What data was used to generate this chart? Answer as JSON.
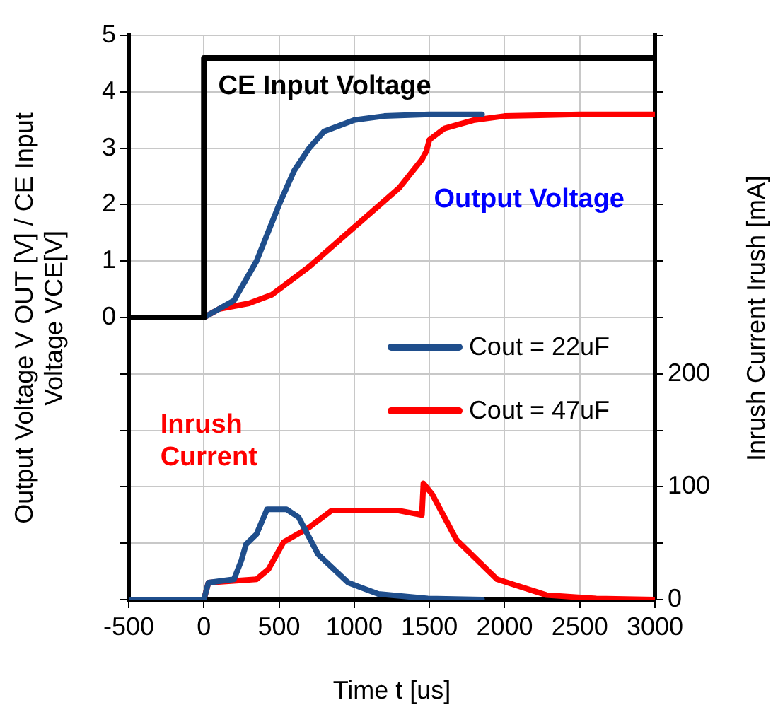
{
  "chart_data": {
    "type": "line",
    "xlabel": "Time t  [us]",
    "ylabel": "Output Voltage V OUT  [V] / CE Input Voltage VCE[V]",
    "y2label": "Inrush Current Irush [mA]",
    "xlim": [
      -500,
      3000
    ],
    "xticks": [
      -500,
      0,
      500,
      1000,
      1500,
      2000,
      2500,
      3000
    ],
    "ylim": [
      -5,
      5
    ],
    "yticks": [
      {
        "value": -5,
        "label": null
      },
      {
        "value": -4,
        "label": null
      },
      {
        "value": -3,
        "label": null
      },
      {
        "value": -2,
        "label": null
      },
      {
        "value": -1,
        "label": null
      },
      0,
      1,
      2,
      3,
      4,
      5
    ],
    "y2lim": [
      0,
      500
    ],
    "y2ticks": [
      0,
      {
        "value": 50,
        "label": null
      },
      100,
      {
        "value": 150,
        "label": null
      },
      200,
      {
        "value": 250,
        "label": null
      },
      {
        "value": 300,
        "label": null
      },
      {
        "value": 350,
        "label": null
      },
      {
        "value": 400,
        "label": null
      },
      {
        "value": 450,
        "label": null
      },
      {
        "value": 500,
        "label": null
      }
    ],
    "grid": true,
    "legend": "right",
    "marker": "none",
    "line_style": "solid",
    "annotations": [
      "CE Input Voltage",
      "Output Voltage",
      "Inrush Current"
    ],
    "series": [
      {
        "color": "#000000",
        "x": [
          -500,
          0,
          0,
          3000
        ],
        "values": [
          0,
          0,
          4.6,
          4.6
        ]
      },
      {
        "name": "Cout = 22uF",
        "color": "#1f4e8c",
        "x": [
          -500,
          0,
          100,
          200,
          350,
          500,
          600,
          700,
          800,
          1000,
          1200,
          1500,
          1850
        ],
        "values": [
          0,
          0,
          0.15,
          0.3,
          1,
          2,
          2.6,
          3,
          3.3,
          3.5,
          3.57,
          3.6,
          3.6
        ]
      },
      {
        "name": "Cout = 47uF",
        "color": "#ff0000",
        "x": [
          -500,
          0,
          100,
          300,
          450,
          700,
          1000,
          1300,
          1450,
          1480,
          1500,
          1600,
          1800,
          2000,
          2500,
          3000
        ],
        "values": [
          0,
          0,
          0.15,
          0.25,
          0.4,
          0.9,
          1.6,
          2.3,
          2.8,
          2.95,
          3.15,
          3.35,
          3.5,
          3.57,
          3.6,
          3.6
        ]
      },
      {
        "color": "#1f4e8c",
        "axis": "y2",
        "x": [
          -500,
          0,
          30,
          200,
          250,
          280,
          350,
          420,
          550,
          630,
          760,
          960,
          1160,
          1490,
          1850
        ],
        "values": [
          0,
          0,
          15,
          18,
          35,
          49,
          58,
          80,
          80,
          73,
          40,
          15,
          5,
          1,
          0
        ]
      },
      {
        "color": "#ff0000",
        "axis": "y2",
        "x": [
          -500,
          0,
          30,
          350,
          430,
          530,
          700,
          850,
          1290,
          1450,
          1460,
          1520,
          1680,
          1950,
          2280,
          2610,
          3000
        ],
        "values": [
          0,
          0,
          15,
          18,
          27,
          51,
          64,
          79,
          79,
          75,
          103,
          93,
          53,
          18,
          4,
          1,
          0
        ]
      }
    ]
  }
}
